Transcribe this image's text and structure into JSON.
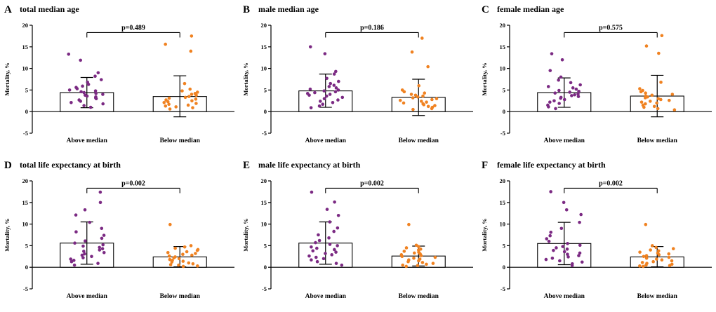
{
  "figure": {
    "background": "#ffffff"
  },
  "colors": {
    "above_median": "#7b2a83",
    "below_median": "#f08221",
    "axis": "#000000",
    "bar_fill": "#ffffff"
  },
  "chart_data": [
    {
      "panel": "A",
      "type": "scatter",
      "title": "total median age",
      "p_value_label": "p=0.489",
      "ylabel": "Mortality, %",
      "ylim": [
        -5,
        20
      ],
      "yticks": [
        -5,
        0,
        5,
        10,
        15,
        20
      ],
      "bracket_y": 18.3,
      "categories": [
        "Above median",
        "Below median"
      ],
      "series": [
        {
          "name": "Above median",
          "color_key": "above_median",
          "mean": 4.4,
          "err_low": 0.9,
          "err_high": 7.9,
          "points": [
            13.3,
            11.9,
            9.0,
            8.2,
            7.4,
            6.8,
            6.3,
            5.9,
            5.6,
            5.3,
            5.0,
            4.8,
            4.6,
            4.4,
            4.2,
            4.0,
            3.8,
            3.6,
            3.4,
            3.2,
            3.0,
            2.7,
            2.4,
            2.1,
            1.8,
            1.4,
            1.0
          ]
        },
        {
          "name": "Below median",
          "color_key": "below_median",
          "mean": 3.5,
          "err_low": -1.2,
          "err_high": 8.3,
          "points": [
            17.5,
            15.6,
            14.0,
            6.5,
            5.2,
            4.8,
            4.5,
            4.2,
            4.0,
            3.8,
            3.5,
            3.3,
            3.1,
            2.9,
            2.7,
            2.5,
            2.3,
            2.1,
            1.9,
            1.7,
            1.5,
            1.3,
            1.1,
            0.9,
            0.6
          ]
        }
      ]
    },
    {
      "panel": "B",
      "type": "scatter",
      "title": "male median age",
      "p_value_label": "p=0.186",
      "ylabel": "Mortality, %",
      "ylim": [
        -5,
        20
      ],
      "yticks": [
        -5,
        0,
        5,
        10,
        15,
        20
      ],
      "bracket_y": 18.3,
      "categories": [
        "Above median",
        "Below median"
      ],
      "series": [
        {
          "name": "Above median",
          "color_key": "above_median",
          "mean": 4.8,
          "err_low": 1.0,
          "err_high": 8.7,
          "points": [
            15.0,
            13.4,
            9.3,
            8.7,
            7.7,
            7.0,
            6.5,
            6.1,
            5.8,
            5.5,
            5.2,
            5.0,
            4.8,
            4.6,
            4.4,
            4.2,
            4.0,
            3.8,
            3.6,
            3.3,
            3.0,
            2.7,
            2.4,
            2.1,
            1.7,
            1.3,
            0.9
          ]
        },
        {
          "name": "Below median",
          "color_key": "below_median",
          "mean": 3.3,
          "err_low": -0.9,
          "err_high": 7.5,
          "points": [
            17.0,
            13.8,
            10.4,
            6.0,
            5.0,
            4.6,
            4.3,
            4.0,
            3.8,
            3.6,
            3.4,
            3.2,
            3.0,
            2.8,
            2.6,
            2.4,
            2.2,
            2.0,
            1.8,
            1.6,
            1.4,
            1.2,
            1.0,
            0.7,
            0.5
          ]
        }
      ]
    },
    {
      "panel": "C",
      "type": "scatter",
      "title": "female median age",
      "p_value_label": "p=0.575",
      "ylabel": "Mortality, %",
      "ylim": [
        -5,
        20
      ],
      "yticks": [
        -5,
        0,
        5,
        10,
        15,
        20
      ],
      "bracket_y": 18.3,
      "categories": [
        "Above median",
        "Below median"
      ],
      "series": [
        {
          "name": "Above median",
          "color_key": "above_median",
          "mean": 4.4,
          "err_low": 1.0,
          "err_high": 7.8,
          "points": [
            13.4,
            12.0,
            9.5,
            8.0,
            7.3,
            6.7,
            6.2,
            5.8,
            5.5,
            5.2,
            4.9,
            4.7,
            4.5,
            4.3,
            4.1,
            3.9,
            3.7,
            3.5,
            3.3,
            3.1,
            2.8,
            2.5,
            2.2,
            1.9,
            1.5,
            1.1,
            0.7
          ]
        },
        {
          "name": "Below median",
          "color_key": "below_median",
          "mean": 3.6,
          "err_low": -1.2,
          "err_high": 8.4,
          "points": [
            17.6,
            15.2,
            13.5,
            6.8,
            5.3,
            4.9,
            4.6,
            4.3,
            4.0,
            3.8,
            3.6,
            3.4,
            3.2,
            3.0,
            2.8,
            2.6,
            2.4,
            2.2,
            2.0,
            1.8,
            1.5,
            1.2,
            1.0,
            0.7,
            0.4
          ]
        }
      ]
    },
    {
      "panel": "D",
      "type": "scatter",
      "title": "total life expectancy at birth",
      "p_value_label": "p=0.002",
      "ylabel": "Mortality, %",
      "ylim": [
        -5,
        20
      ],
      "yticks": [
        -5,
        0,
        5,
        10,
        15,
        20
      ],
      "bracket_y": 18.3,
      "categories": [
        "Above median",
        "Below median"
      ],
      "series": [
        {
          "name": "Above median",
          "color_key": "above_median",
          "mean": 5.6,
          "err_low": 0.7,
          "err_high": 10.5,
          "points": [
            17.4,
            15.0,
            13.3,
            12.1,
            10.4,
            9.0,
            8.2,
            7.4,
            6.7,
            6.1,
            5.6,
            5.2,
            4.9,
            4.6,
            4.3,
            4.0,
            3.7,
            3.4,
            3.1,
            2.8,
            2.5,
            2.2,
            1.9,
            1.6,
            1.3,
            0.9,
            0.5
          ]
        },
        {
          "name": "Below median",
          "color_key": "below_median",
          "mean": 2.4,
          "err_low": 0.1,
          "err_high": 4.8,
          "points": [
            9.9,
            5.0,
            4.7,
            4.4,
            4.1,
            3.9,
            3.6,
            3.4,
            3.2,
            3.0,
            2.8,
            2.6,
            2.4,
            2.2,
            2.0,
            1.8,
            1.6,
            1.4,
            1.2,
            1.0,
            0.8,
            0.6,
            0.5,
            0.3,
            0.2
          ]
        }
      ]
    },
    {
      "panel": "E",
      "type": "scatter",
      "title": "male life expectancy at birth",
      "p_value_label": "p=0.002",
      "ylabel": "Mortality, %",
      "ylim": [
        -5,
        20
      ],
      "yticks": [
        -5,
        0,
        5,
        10,
        15,
        20
      ],
      "bracket_y": 18.3,
      "categories": [
        "Above median",
        "Below median"
      ],
      "series": [
        {
          "name": "Above median",
          "color_key": "above_median",
          "mean": 5.6,
          "err_low": 0.7,
          "err_high": 10.5,
          "points": [
            17.4,
            15.1,
            13.4,
            12.0,
            10.5,
            9.1,
            8.3,
            7.5,
            6.8,
            6.2,
            5.7,
            5.3,
            5.0,
            4.7,
            4.4,
            4.1,
            3.8,
            3.5,
            3.2,
            2.9,
            2.6,
            2.3,
            2.0,
            1.7,
            1.3,
            0.9,
            0.5
          ]
        },
        {
          "name": "Below median",
          "color_key": "below_median",
          "mean": 2.6,
          "err_low": 0.3,
          "err_high": 4.9,
          "points": [
            9.9,
            5.1,
            4.8,
            4.5,
            4.2,
            4.0,
            3.7,
            3.5,
            3.3,
            3.1,
            2.9,
            2.7,
            2.5,
            2.3,
            2.1,
            1.9,
            1.7,
            1.5,
            1.3,
            1.1,
            0.9,
            0.7,
            0.5,
            0.4,
            0.2
          ]
        }
      ]
    },
    {
      "panel": "F",
      "type": "scatter",
      "title": "female life expectancy at birth",
      "p_value_label": "p=0.002",
      "ylabel": "Mortality, %",
      "ylim": [
        -5,
        20
      ],
      "yticks": [
        -5,
        0,
        5,
        10,
        15,
        20
      ],
      "bracket_y": 18.3,
      "categories": [
        "Above median",
        "Below median"
      ],
      "series": [
        {
          "name": "Above median",
          "color_key": "above_median",
          "mean": 5.5,
          "err_low": 0.6,
          "err_high": 10.4,
          "points": [
            17.5,
            15.0,
            13.3,
            12.2,
            10.4,
            9.0,
            8.1,
            7.3,
            6.6,
            6.0,
            5.5,
            5.1,
            4.8,
            4.5,
            4.2,
            3.9,
            3.6,
            3.3,
            3.0,
            2.7,
            2.4,
            2.1,
            1.8,
            1.5,
            1.2,
            0.8,
            0.4
          ]
        },
        {
          "name": "Below median",
          "color_key": "below_median",
          "mean": 2.4,
          "err_low": 0.1,
          "err_high": 4.8,
          "points": [
            9.9,
            5.0,
            4.6,
            4.3,
            4.0,
            3.8,
            3.5,
            3.3,
            3.1,
            2.9,
            2.7,
            2.5,
            2.3,
            2.1,
            1.9,
            1.7,
            1.5,
            1.3,
            1.1,
            0.9,
            0.7,
            0.5,
            0.4,
            0.3,
            0.2
          ]
        }
      ]
    }
  ]
}
